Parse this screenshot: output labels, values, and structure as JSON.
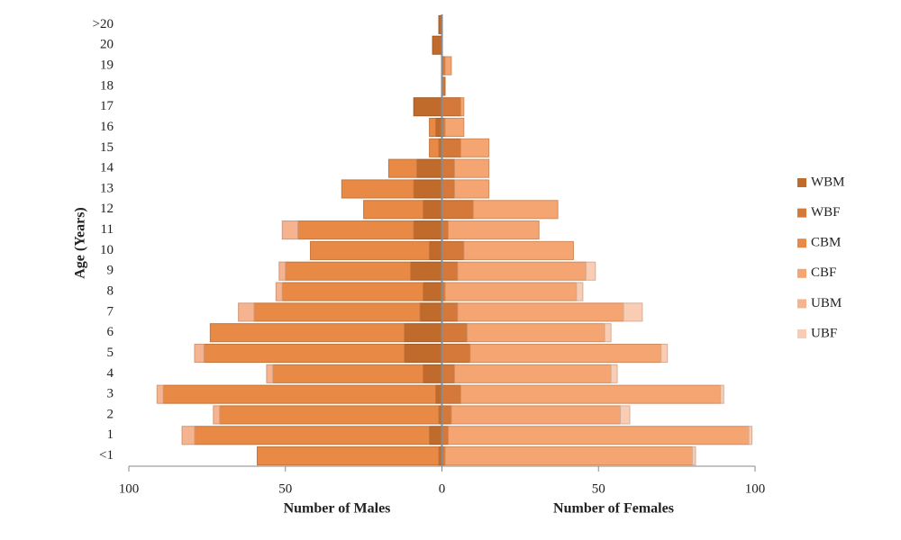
{
  "chart_data": {
    "type": "pyramid",
    "y_label": "Age (Years)",
    "x_label_left": "Number of Males",
    "x_label_right": "Number of Females",
    "categories": [
      "<1",
      "1",
      "2",
      "3",
      "4",
      "5",
      "6",
      "7",
      "8",
      "9",
      "10",
      "11",
      "12",
      "13",
      "14",
      "15",
      "16",
      "17",
      "18",
      "19",
      "20",
      ">20"
    ],
    "xlim": [
      -100,
      100
    ],
    "xticks": [
      {
        "value": -100,
        "label": "100"
      },
      {
        "value": -50,
        "label": "50"
      },
      0,
      {
        "value": 50,
        "label": "50"
      },
      100
    ],
    "series": [
      {
        "name": "WBM",
        "side": "left",
        "color": "#c06a2c",
        "values": [
          1,
          4,
          1,
          2,
          6,
          12,
          12,
          7,
          6,
          10,
          4,
          9,
          6,
          9,
          8,
          1,
          2,
          9,
          0,
          0,
          3,
          1
        ]
      },
      {
        "name": "WBF",
        "side": "right",
        "color": "#d4793a",
        "values": [
          1,
          2,
          3,
          6,
          4,
          9,
          8,
          5,
          1,
          5,
          7,
          2,
          10,
          4,
          4,
          6,
          1,
          6,
          1,
          1,
          0,
          0
        ]
      },
      {
        "name": "CBM",
        "side": "left",
        "color": "#e88a45",
        "values": [
          58,
          75,
          70,
          87,
          48,
          64,
          62,
          53,
          45,
          40,
          38,
          37,
          19,
          23,
          9,
          3,
          2,
          0,
          0,
          0,
          0,
          0
        ]
      },
      {
        "name": "CBF",
        "side": "right",
        "color": "#f4a571",
        "values": [
          79,
          96,
          54,
          83,
          50,
          61,
          44,
          53,
          42,
          41,
          35,
          29,
          27,
          11,
          11,
          9,
          6,
          1,
          0,
          2,
          0,
          0
        ]
      },
      {
        "name": "UBM",
        "side": "left",
        "color": "#f5b48f",
        "values": [
          0,
          4,
          2,
          2,
          2,
          3,
          0,
          5,
          2,
          2,
          0,
          5,
          0,
          0,
          0,
          0,
          0,
          0,
          0,
          0,
          0,
          0
        ]
      },
      {
        "name": "UBF",
        "side": "right",
        "color": "#f9cdb3",
        "values": [
          1,
          1,
          3,
          1,
          2,
          2,
          2,
          6,
          2,
          3,
          0,
          0,
          0,
          0,
          0,
          0,
          0,
          0,
          0,
          0,
          0,
          0
        ]
      }
    ]
  }
}
